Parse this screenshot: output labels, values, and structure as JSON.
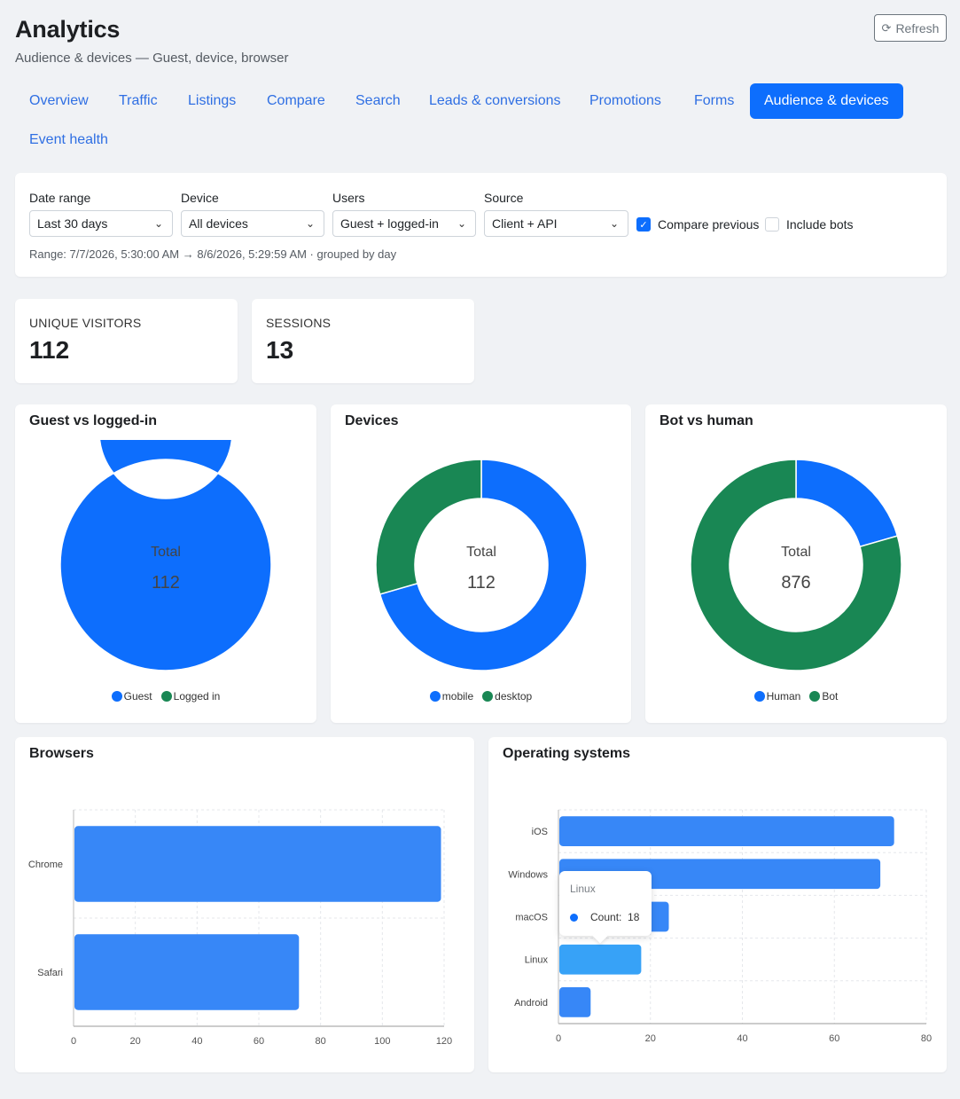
{
  "header": {
    "title": "Analytics",
    "subtitle": "Audience & devices — Guest, device, browser",
    "refresh_label": "Refresh",
    "refresh_icon": "refresh-icon"
  },
  "tabs": [
    {
      "label": "Overview",
      "active": false
    },
    {
      "label": "Traffic",
      "active": false
    },
    {
      "label": "Listings",
      "active": false
    },
    {
      "label": "Compare",
      "active": false
    },
    {
      "label": "Search",
      "active": false
    },
    {
      "label": "Leads & conversions",
      "active": false
    },
    {
      "label": "Promotions",
      "active": false
    },
    {
      "label": "Forms",
      "active": false
    },
    {
      "label": "Audience & devices",
      "active": true
    },
    {
      "label": "Event health",
      "active": false
    }
  ],
  "filters": {
    "date_range": {
      "label": "Date range",
      "value": "Last 30 days"
    },
    "device": {
      "label": "Device",
      "value": "All devices"
    },
    "users": {
      "label": "Users",
      "value": "Guest + logged-in"
    },
    "source": {
      "label": "Source",
      "value": "Client + API"
    },
    "compare_previous": {
      "label": "Compare previous",
      "checked": true
    },
    "include_bots": {
      "label": "Include bots",
      "checked": false
    },
    "range_text": "Range: 7/7/2026, 5:30:00 AM → 8/6/2026, 5:29:59 AM · grouped by day"
  },
  "stats": [
    {
      "label": "UNIQUE VISITORS",
      "value": "112"
    },
    {
      "label": "SESSIONS",
      "value": "13"
    }
  ],
  "colors": {
    "blue": "#0d6efd",
    "green": "#198754",
    "bar": "#3787f7",
    "bar_hover": "#37a2f7"
  },
  "chart_data": [
    {
      "type": "pie",
      "title": "Guest vs logged-in",
      "center_label": "Total",
      "center_value": "112",
      "labels": [
        "Guest",
        "Logged in"
      ],
      "values": [
        112,
        0
      ],
      "colors": [
        "#0d6efd",
        "#198754"
      ]
    },
    {
      "type": "pie",
      "title": "Devices",
      "center_label": "Total",
      "center_value": "112",
      "labels": [
        "mobile",
        "desktop"
      ],
      "values": [
        79,
        33
      ],
      "colors": [
        "#0d6efd",
        "#198754"
      ]
    },
    {
      "type": "pie",
      "title": "Bot vs human",
      "center_label": "Total",
      "center_value": "876",
      "labels": [
        "Human",
        "Bot"
      ],
      "values": [
        180,
        696
      ],
      "colors": [
        "#0d6efd",
        "#198754"
      ]
    },
    {
      "type": "bar",
      "orientation": "horizontal",
      "title": "Browsers",
      "categories": [
        "Chrome",
        "Safari"
      ],
      "values": [
        119,
        73
      ],
      "xlim": [
        0,
        120
      ],
      "xticks": [
        0,
        20,
        40,
        60,
        80,
        100,
        120
      ]
    },
    {
      "type": "bar",
      "orientation": "horizontal",
      "title": "Operating systems",
      "categories": [
        "iOS",
        "Windows",
        "macOS",
        "Linux",
        "Android"
      ],
      "values": [
        73,
        70,
        24,
        18,
        7
      ],
      "xlim": [
        0,
        80
      ],
      "xticks": [
        0,
        20,
        40,
        60,
        80
      ],
      "tooltip": {
        "title": "Linux",
        "label": "Count:",
        "value": "18"
      }
    }
  ]
}
